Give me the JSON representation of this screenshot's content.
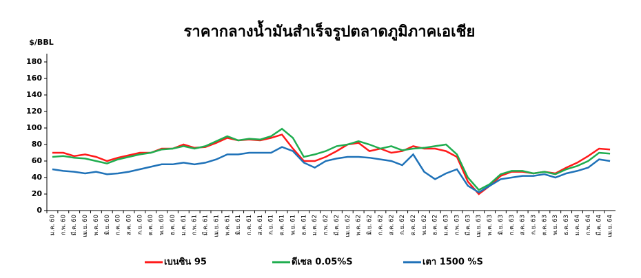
{
  "chart_data": {
    "type": "line",
    "title": "ราคากลางน้ำมันสำเร็จรูปตลาดภูมิภาคเอเชีย",
    "y_label": "$/BBL",
    "categories": [
      "ม.ค. 60",
      "ก.พ. 60",
      "มี.ค. 60",
      "เม.ย. 60",
      "พ.ค. 60",
      "มิ.ย. 60",
      "ก.ค. 60",
      "ส.ค. 60",
      "ก.ย. 60",
      "ต.ค. 60",
      "พ.ย. 60",
      "ธ.ค. 60",
      "ม.ค. 61",
      "ก.พ. 61",
      "มี.ค. 61",
      "เม.ย. 61",
      "พ.ค. 61",
      "มิ.ย. 61",
      "ก.ค. 61",
      "ส.ค. 61",
      "ก.ย. 61",
      "ต.ค. 61",
      "พ.ย. 61",
      "ธ.ค. 61",
      "ม.ค. 62",
      "ก.พ. 62",
      "มี.ค. 62",
      "เม.ย. 62",
      "พ.ค. 62",
      "มิ.ย. 62",
      "ก.ค. 62",
      "ส.ค. 62",
      "ก.ย. 62",
      "ต.ค. 62",
      "พ.ย. 62",
      "ธ.ค. 62",
      "ม.ค. 63",
      "ก.พ. 63",
      "มี.ค. 63",
      "เม.ย. 63",
      "พ.ค. 63",
      "มิ.ย. 63",
      "ก.ค. 63",
      "ส.ค. 63",
      "ก.ย. 63",
      "ต.ค. 63",
      "พ.ย. 63",
      "ธ.ค. 63",
      "ม.ค. 64",
      "ก.พ. 64",
      "มี.ค. 64",
      "เม.ย. 64"
    ],
    "series": [
      {
        "name": "เบนซิน 95",
        "color": "#ff1a1a",
        "values": [
          70,
          70,
          66,
          68,
          65,
          60,
          64,
          67,
          70,
          70,
          75,
          75,
          80,
          76,
          77,
          82,
          88,
          85,
          86,
          85,
          88,
          92,
          75,
          60,
          60,
          65,
          72,
          80,
          82,
          72,
          75,
          70,
          72,
          78,
          75,
          75,
          72,
          65,
          35,
          20,
          30,
          42,
          47,
          47,
          45,
          47,
          45,
          52,
          58,
          66,
          75,
          74
        ]
      },
      {
        "name": "ดีเซล 0.05%S",
        "color": "#1fad4f",
        "values": [
          65,
          66,
          64,
          63,
          60,
          57,
          62,
          65,
          68,
          70,
          74,
          75,
          78,
          75,
          78,
          84,
          90,
          85,
          87,
          86,
          90,
          99,
          88,
          65,
          68,
          72,
          78,
          80,
          84,
          80,
          75,
          78,
          73,
          75,
          76,
          78,
          80,
          68,
          40,
          25,
          32,
          44,
          48,
          48,
          45,
          47,
          44,
          50,
          54,
          60,
          70,
          69
        ]
      },
      {
        "name": "เตา 1500 %S",
        "color": "#1f72b8",
        "values": [
          50,
          48,
          47,
          45,
          47,
          44,
          45,
          47,
          50,
          53,
          56,
          56,
          58,
          56,
          58,
          62,
          68,
          68,
          70,
          70,
          70,
          77,
          72,
          58,
          52,
          60,
          63,
          65,
          65,
          64,
          62,
          60,
          55,
          68,
          47,
          38,
          45,
          50,
          30,
          22,
          30,
          38,
          40,
          42,
          42,
          44,
          40,
          45,
          48,
          52,
          62,
          60
        ]
      }
    ],
    "ylim": [
      0,
      190
    ],
    "yticks": [
      0,
      20,
      40,
      60,
      80,
      100,
      120,
      140,
      160,
      180
    ]
  }
}
